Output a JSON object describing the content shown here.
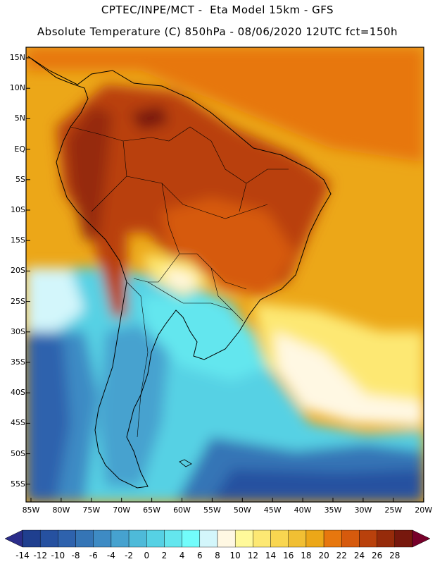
{
  "header": {
    "line1": "CPTEC/INPE/MCT -  Eta Model 15km - GFS",
    "line2": "Absolute Temperature (C) 850hPa - 08/06/2020 12UTC fct=150h"
  },
  "map": {
    "region": "South America",
    "lat_labels": [
      "15N",
      "10N",
      "5N",
      "EQ",
      "5S",
      "10S",
      "15S",
      "20S",
      "25S",
      "30S",
      "35S",
      "40S",
      "45S",
      "50S",
      "55S"
    ],
    "lon_labels": [
      "85W",
      "80W",
      "75W",
      "70W",
      "65W",
      "60W",
      "55W",
      "50W",
      "45W",
      "40W",
      "35W",
      "30W",
      "25W",
      "20W"
    ]
  },
  "colorbar": {
    "labels": [
      "-14",
      "-12",
      "-10",
      "-8",
      "-6",
      "-4",
      "-2",
      "0",
      "2",
      "4",
      "6",
      "8",
      "10",
      "12",
      "14",
      "16",
      "18",
      "20",
      "22",
      "24",
      "26",
      "28"
    ],
    "colors": [
      "#1f3f8f",
      "#2651a0",
      "#2e62ad",
      "#3575b6",
      "#3e8bc4",
      "#46a2cf",
      "#4ebad9",
      "#56d1e4",
      "#64e6ee",
      "#72fcfb",
      "#d3f6fb",
      "#fff8e3",
      "#fff99a",
      "#fde873",
      "#f9d650",
      "#f1bf33",
      "#eca718",
      "#e7770e",
      "#d65a0d",
      "#b9410c",
      "#962b0a",
      "#77180d"
    ],
    "under_color": "#2b2d8a",
    "over_color": "#77002a"
  }
}
